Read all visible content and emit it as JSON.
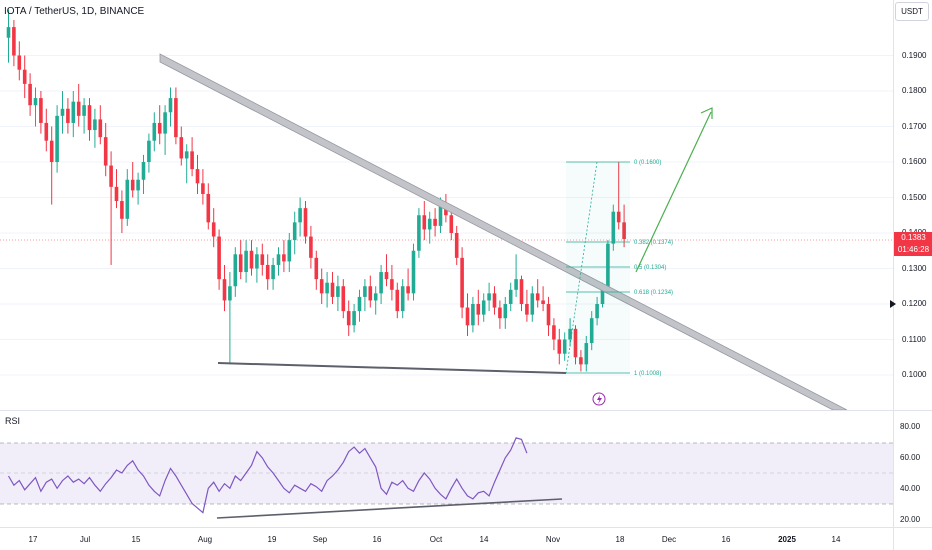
{
  "header": {
    "symbol_title": "IOTA / TetherUS, 1D, BINANCE"
  },
  "price_scale": {
    "currency": "USDT",
    "ticks": [
      "0.1900",
      "0.1800",
      "0.1700",
      "0.1600",
      "0.1500",
      "0.1400",
      "0.1300",
      "0.1200",
      "0.1100",
      "0.1000"
    ],
    "current_price": "0.1383",
    "countdown": "01:46:28"
  },
  "rsi": {
    "label": "RSI",
    "ticks": [
      "80.00",
      "60.00",
      "40.00",
      "20.00"
    ]
  },
  "time_axis": {
    "labels": [
      "17",
      "Jul",
      "15",
      "Aug",
      "19",
      "Sep",
      "16",
      "Oct",
      "14",
      "Nov",
      "18",
      "Dec",
      "16",
      "2025",
      "14"
    ]
  },
  "fib_levels": [
    "0 (0.1600)",
    "0.382 (0.1374)",
    "0.5 (0.1304)",
    "0.618 (0.1234)",
    "1 (0.1008)"
  ],
  "colors": {
    "bull": "#22ab94",
    "bear": "#f23645",
    "rsi_line": "#7e57c2",
    "projection_arrow": "#4caf50",
    "fib": "#22ab94"
  },
  "chart_data": {
    "type": "candlestick",
    "y_range": [
      0.097,
      0.2
    ],
    "ohlc_day_sequence": [
      [
        0.195,
        0.203,
        0.188,
        0.198
      ],
      [
        0.198,
        0.2,
        0.187,
        0.19
      ],
      [
        0.19,
        0.194,
        0.183,
        0.186
      ],
      [
        0.186,
        0.19,
        0.178,
        0.182
      ],
      [
        0.182,
        0.185,
        0.173,
        0.176
      ],
      [
        0.176,
        0.181,
        0.17,
        0.178
      ],
      [
        0.178,
        0.18,
        0.168,
        0.171
      ],
      [
        0.171,
        0.175,
        0.163,
        0.166
      ],
      [
        0.166,
        0.17,
        0.148,
        0.16
      ],
      [
        0.16,
        0.176,
        0.157,
        0.173
      ],
      [
        0.173,
        0.18,
        0.168,
        0.175
      ],
      [
        0.175,
        0.178,
        0.168,
        0.171
      ],
      [
        0.171,
        0.18,
        0.167,
        0.177
      ],
      [
        0.177,
        0.182,
        0.17,
        0.173
      ],
      [
        0.173,
        0.178,
        0.168,
        0.176
      ],
      [
        0.176,
        0.178,
        0.166,
        0.169
      ],
      [
        0.169,
        0.175,
        0.164,
        0.172
      ],
      [
        0.172,
        0.176,
        0.165,
        0.167
      ],
      [
        0.167,
        0.171,
        0.156,
        0.159
      ],
      [
        0.159,
        0.163,
        0.131,
        0.153
      ],
      [
        0.153,
        0.158,
        0.147,
        0.149
      ],
      [
        0.149,
        0.152,
        0.14,
        0.144
      ],
      [
        0.144,
        0.158,
        0.142,
        0.155
      ],
      [
        0.155,
        0.16,
        0.15,
        0.152
      ],
      [
        0.152,
        0.157,
        0.148,
        0.155
      ],
      [
        0.155,
        0.162,
        0.151,
        0.16
      ],
      [
        0.16,
        0.168,
        0.157,
        0.166
      ],
      [
        0.166,
        0.174,
        0.163,
        0.171
      ],
      [
        0.171,
        0.176,
        0.165,
        0.168
      ],
      [
        0.168,
        0.176,
        0.162,
        0.174
      ],
      [
        0.174,
        0.181,
        0.17,
        0.178
      ],
      [
        0.178,
        0.181,
        0.165,
        0.167
      ],
      [
        0.167,
        0.17,
        0.159,
        0.161
      ],
      [
        0.161,
        0.165,
        0.154,
        0.163
      ],
      [
        0.163,
        0.167,
        0.156,
        0.158
      ],
      [
        0.158,
        0.162,
        0.151,
        0.154
      ],
      [
        0.154,
        0.158,
        0.148,
        0.151
      ],
      [
        0.151,
        0.154,
        0.141,
        0.143
      ],
      [
        0.143,
        0.147,
        0.136,
        0.139
      ],
      [
        0.139,
        0.141,
        0.124,
        0.127
      ],
      [
        0.127,
        0.131,
        0.118,
        0.121
      ],
      [
        0.121,
        0.129,
        0.103,
        0.125
      ],
      [
        0.125,
        0.136,
        0.122,
        0.134
      ],
      [
        0.134,
        0.138,
        0.127,
        0.129
      ],
      [
        0.129,
        0.138,
        0.126,
        0.135
      ],
      [
        0.135,
        0.138,
        0.128,
        0.13
      ],
      [
        0.13,
        0.136,
        0.126,
        0.134
      ],
      [
        0.134,
        0.137,
        0.128,
        0.131
      ],
      [
        0.131,
        0.134,
        0.124,
        0.127
      ],
      [
        0.127,
        0.133,
        0.124,
        0.131
      ],
      [
        0.131,
        0.136,
        0.128,
        0.134
      ],
      [
        0.134,
        0.138,
        0.129,
        0.132
      ],
      [
        0.132,
        0.14,
        0.129,
        0.138
      ],
      [
        0.138,
        0.146,
        0.134,
        0.143
      ],
      [
        0.143,
        0.15,
        0.139,
        0.147
      ],
      [
        0.147,
        0.149,
        0.137,
        0.139
      ],
      [
        0.139,
        0.142,
        0.13,
        0.133
      ],
      [
        0.133,
        0.135,
        0.124,
        0.127
      ],
      [
        0.127,
        0.13,
        0.12,
        0.123
      ],
      [
        0.123,
        0.129,
        0.119,
        0.126
      ],
      [
        0.126,
        0.129,
        0.12,
        0.122
      ],
      [
        0.122,
        0.128,
        0.118,
        0.125
      ],
      [
        0.125,
        0.127,
        0.116,
        0.118
      ],
      [
        0.118,
        0.121,
        0.111,
        0.114
      ],
      [
        0.114,
        0.12,
        0.112,
        0.118
      ],
      [
        0.118,
        0.124,
        0.115,
        0.122
      ],
      [
        0.122,
        0.127,
        0.118,
        0.125
      ],
      [
        0.125,
        0.128,
        0.119,
        0.121
      ],
      [
        0.121,
        0.125,
        0.117,
        0.123
      ],
      [
        0.123,
        0.131,
        0.12,
        0.129
      ],
      [
        0.129,
        0.134,
        0.125,
        0.127
      ],
      [
        0.127,
        0.131,
        0.121,
        0.124
      ],
      [
        0.124,
        0.126,
        0.116,
        0.118
      ],
      [
        0.118,
        0.127,
        0.116,
        0.125
      ],
      [
        0.125,
        0.13,
        0.121,
        0.123
      ],
      [
        0.123,
        0.137,
        0.121,
        0.135
      ],
      [
        0.135,
        0.147,
        0.133,
        0.145
      ],
      [
        0.145,
        0.149,
        0.138,
        0.141
      ],
      [
        0.141,
        0.146,
        0.137,
        0.144
      ],
      [
        0.144,
        0.147,
        0.139,
        0.142
      ],
      [
        0.142,
        0.15,
        0.14,
        0.148
      ],
      [
        0.148,
        0.151,
        0.143,
        0.145
      ],
      [
        0.145,
        0.148,
        0.138,
        0.14
      ],
      [
        0.14,
        0.142,
        0.131,
        0.133
      ],
      [
        0.133,
        0.136,
        0.116,
        0.119
      ],
      [
        0.119,
        0.123,
        0.111,
        0.114
      ],
      [
        0.114,
        0.122,
        0.112,
        0.12
      ],
      [
        0.12,
        0.124,
        0.114,
        0.117
      ],
      [
        0.117,
        0.123,
        0.115,
        0.121
      ],
      [
        0.121,
        0.126,
        0.118,
        0.123
      ],
      [
        0.123,
        0.125,
        0.117,
        0.119
      ],
      [
        0.119,
        0.121,
        0.113,
        0.116
      ],
      [
        0.116,
        0.122,
        0.113,
        0.12
      ],
      [
        0.12,
        0.126,
        0.118,
        0.124
      ],
      [
        0.124,
        0.134,
        0.122,
        0.127
      ],
      [
        0.127,
        0.128,
        0.118,
        0.12
      ],
      [
        0.12,
        0.124,
        0.115,
        0.117
      ],
      [
        0.117,
        0.125,
        0.115,
        0.123
      ],
      [
        0.123,
        0.127,
        0.119,
        0.121
      ],
      [
        0.121,
        0.125,
        0.118,
        0.12
      ],
      [
        0.12,
        0.122,
        0.111,
        0.114
      ],
      [
        0.114,
        0.116,
        0.107,
        0.11
      ],
      [
        0.11,
        0.113,
        0.103,
        0.106
      ],
      [
        0.106,
        0.112,
        0.104,
        0.11
      ],
      [
        0.11,
        0.116,
        0.108,
        0.113
      ],
      [
        0.113,
        0.114,
        0.103,
        0.105
      ],
      [
        0.105,
        0.107,
        0.101,
        0.103
      ],
      [
        0.103,
        0.111,
        0.101,
        0.109
      ],
      [
        0.109,
        0.118,
        0.107,
        0.116
      ],
      [
        0.116,
        0.122,
        0.114,
        0.12
      ],
      [
        0.12,
        0.126,
        0.119,
        0.124
      ],
      [
        0.124,
        0.138,
        0.123,
        0.137
      ],
      [
        0.137,
        0.148,
        0.135,
        0.146
      ],
      [
        0.146,
        0.16,
        0.141,
        0.143
      ],
      [
        0.143,
        0.148,
        0.136,
        0.1383
      ]
    ]
  },
  "rsi_data": {
    "y_range": [
      15,
      85
    ],
    "values": [
      48,
      42,
      45,
      39,
      43,
      47,
      38,
      44,
      46,
      40,
      45,
      48,
      44,
      46,
      43,
      47,
      42,
      38,
      43,
      47,
      52,
      50,
      55,
      58,
      52,
      48,
      42,
      38,
      35,
      45,
      53,
      48,
      42,
      36,
      30,
      27,
      24,
      40,
      44,
      38,
      43,
      40,
      48,
      45,
      50,
      55,
      64,
      60,
      54,
      50,
      45,
      40,
      37,
      42,
      40,
      38,
      43,
      41,
      38,
      45,
      48,
      52,
      57,
      64,
      67,
      63,
      66,
      60,
      54,
      40,
      36,
      44,
      42,
      45,
      40,
      38,
      45,
      50,
      46,
      40,
      36,
      33,
      40,
      46,
      40,
      35,
      33,
      37,
      38,
      35,
      44,
      52,
      60,
      65,
      73,
      72,
      63
    ]
  }
}
